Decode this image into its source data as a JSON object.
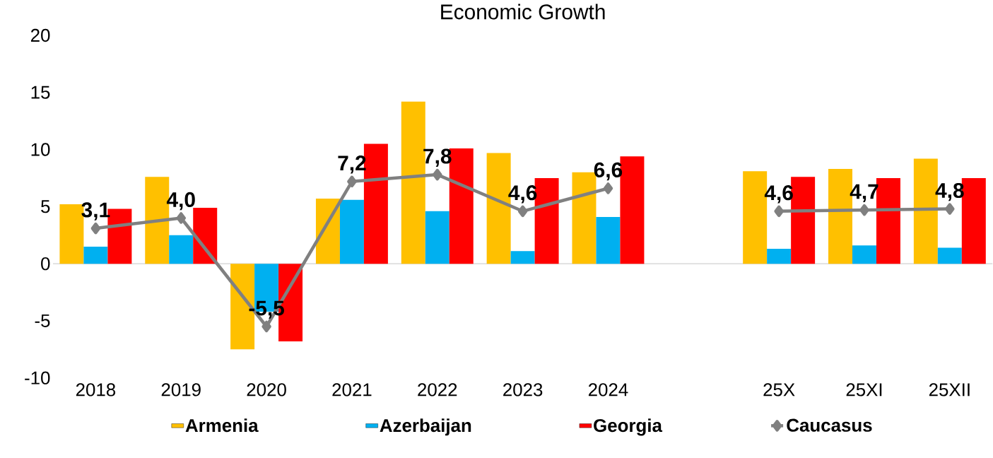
{
  "chart_data": {
    "type": "bar",
    "title": "Economic Growth",
    "categories": [
      "2018",
      "2019",
      "2020",
      "2021",
      "2022",
      "2023",
      "2024",
      null,
      "25X",
      "25XI",
      "25XII"
    ],
    "series": [
      {
        "name": "Armenia",
        "type": "bar",
        "color": "#ffc000",
        "values": [
          5.2,
          7.6,
          -7.5,
          5.7,
          14.2,
          9.7,
          8.0,
          null,
          8.1,
          8.3,
          9.2
        ]
      },
      {
        "name": "Azerbaijan",
        "type": "bar",
        "color": "#00b0f0",
        "values": [
          1.5,
          2.5,
          -4.2,
          5.6,
          4.6,
          1.1,
          4.1,
          null,
          1.3,
          1.6,
          1.4
        ]
      },
      {
        "name": "Georgia",
        "type": "bar",
        "color": "#ff0000",
        "values": [
          4.8,
          4.9,
          -6.8,
          10.5,
          10.1,
          7.5,
          9.4,
          null,
          7.6,
          7.5,
          7.5
        ]
      },
      {
        "name": "Caucasus",
        "type": "line",
        "color": "#808080",
        "marker": "diamond",
        "values": [
          3.1,
          4.0,
          -5.5,
          7.2,
          7.8,
          4.6,
          6.6,
          null,
          4.6,
          4.7,
          4.8
        ],
        "value_labels": [
          "3,1",
          "4,0",
          "-5,5",
          "7,2",
          "7,8",
          "4,6",
          "6,6",
          null,
          "4,6",
          "4,7",
          "4,8"
        ]
      }
    ],
    "ylim": [
      -10,
      20
    ],
    "yticks": [
      -10,
      -5,
      0,
      5,
      10,
      15,
      20
    ],
    "legend": "bottom"
  }
}
